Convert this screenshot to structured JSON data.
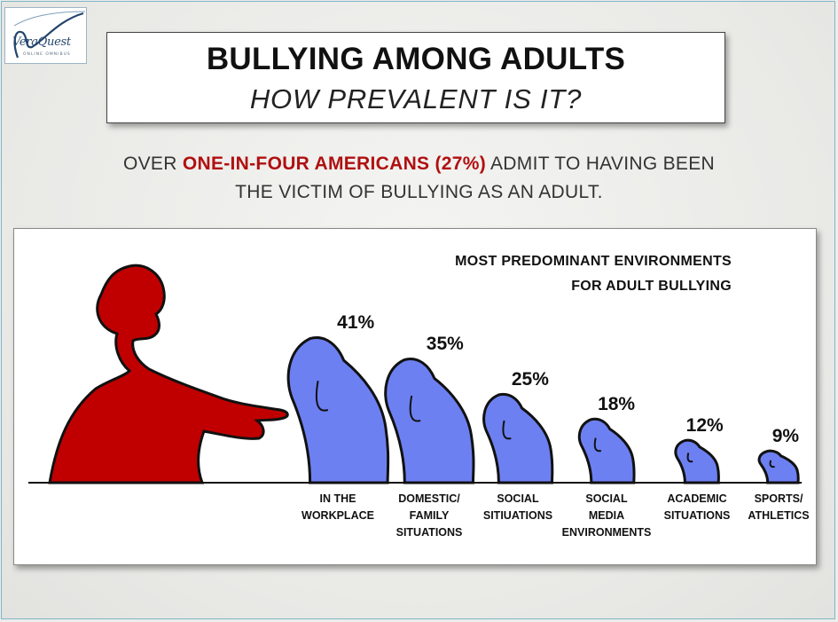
{
  "logo": {
    "name": "VeraQuest",
    "tagline": "ONLINE OMNIBUS"
  },
  "header": {
    "title": "BULLYING AMONG ADULTS",
    "subtitle": "HOW PREVALENT IS IT?"
  },
  "intro": {
    "prefix": "OVER",
    "highlight": "ONE-IN-FOUR AMERICANS (27%)",
    "suffix": "ADMIT TO HAVING BEEN",
    "line2": "THE VICTIM OF BULLYING AS AN ADULT."
  },
  "colors": {
    "bully": "#c00000",
    "victim": "#6d80f2",
    "highlight": "#b01010"
  },
  "chart_data": {
    "type": "bar",
    "title_lines": [
      "MOST PREDOMINANT ENVIRONMENTS",
      "FOR ADULT BULLYING"
    ],
    "categories": [
      [
        "IN THE",
        "WORKPLACE"
      ],
      [
        "DOMESTIC/",
        "FAMILY",
        "SITUATIONS"
      ],
      [
        "SOCIAL",
        "SITIUATIONS"
      ],
      [
        "SOCIAL",
        "MEDIA",
        "ENVIRONMENTS"
      ],
      [
        "ACADEMIC",
        "SITUATIONS"
      ],
      [
        "SPORTS/",
        "ATHLETICS"
      ]
    ],
    "values": [
      41,
      35,
      25,
      18,
      12,
      9
    ],
    "value_labels": [
      "41%",
      "35%",
      "25%",
      "18%",
      "12%",
      "9%"
    ],
    "bar_shape": "hunched-figure-icon",
    "ylim": [
      0,
      45
    ],
    "grid": false
  }
}
